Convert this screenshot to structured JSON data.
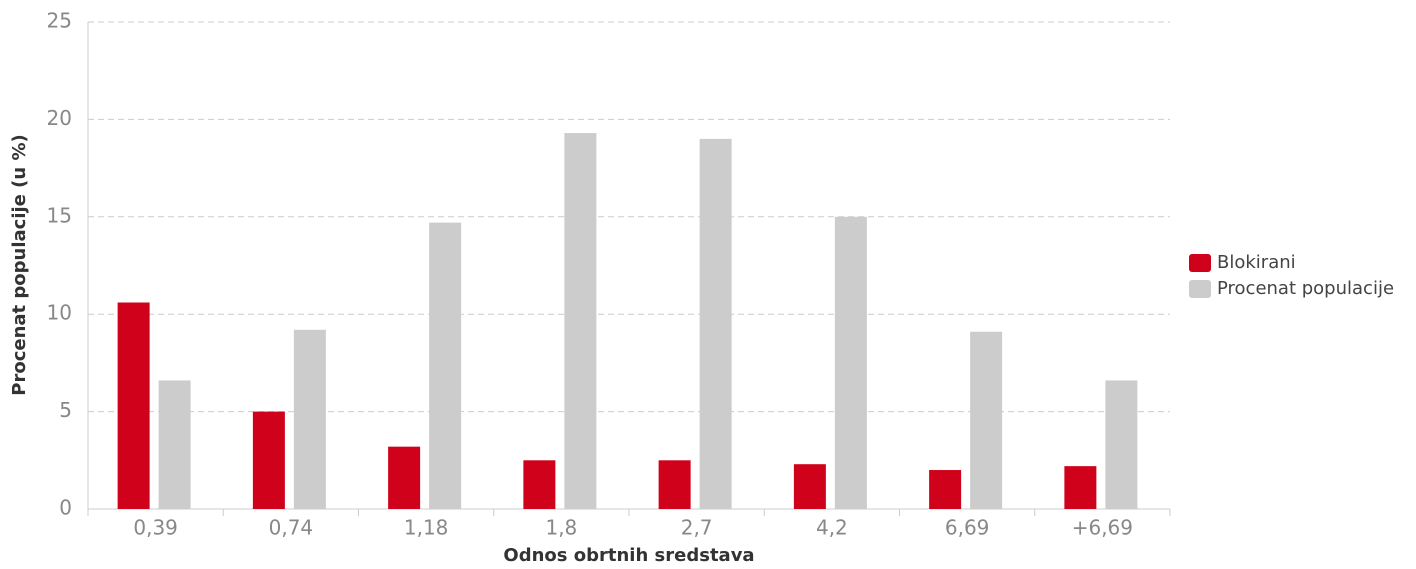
{
  "chart_data": {
    "type": "bar",
    "xlabel": "Odnos obrtnih sredstava",
    "ylabel": "Procenat populacije (u %)",
    "categories": [
      "0,39",
      "0,74",
      "1,18",
      "1,8",
      "2,7",
      "4,2",
      "6,69",
      "+6,69"
    ],
    "series": [
      {
        "name": "Blokirani",
        "color": "#d0021b",
        "values": [
          10.6,
          5.0,
          3.2,
          2.5,
          2.5,
          2.3,
          2.0,
          2.2
        ]
      },
      {
        "name": "Procenat populacije",
        "color": "#cccccc",
        "values": [
          6.6,
          9.2,
          14.7,
          19.3,
          19.0,
          15.0,
          9.1,
          6.6
        ]
      }
    ],
    "ylim": [
      0,
      25
    ],
    "yticks": [
      0,
      5,
      10,
      15,
      20,
      25
    ],
    "grid": true,
    "legend": "right"
  }
}
